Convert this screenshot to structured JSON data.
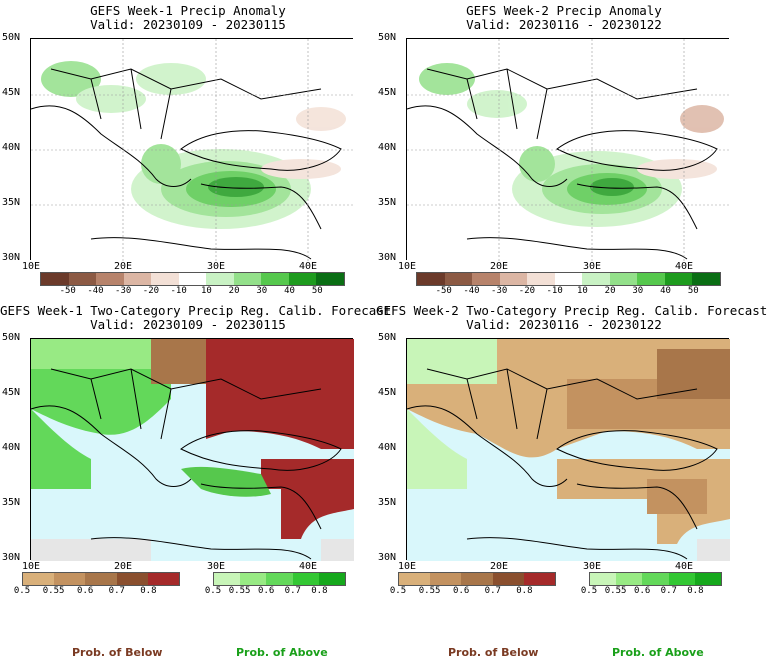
{
  "panels": [
    {
      "title": "GEFS Week-1 Precip Anomaly",
      "valid": "Valid: 20230109 - 20230115"
    },
    {
      "title": "GEFS Week-2 Precip Anomaly",
      "valid": "Valid: 20230116 - 20230122"
    },
    {
      "title": "GEFS Week-1 Two-Category Precip Reg. Calib. Forecast",
      "valid": "Valid: 20230109 - 20230115"
    },
    {
      "title": "GEFS Week-2 Two-Category Precip Reg. Calib. Forecast",
      "valid": "Valid: 20230116 - 20230122"
    }
  ],
  "axes": {
    "lat_labels": [
      "50N",
      "45N",
      "40N",
      "35N",
      "30N"
    ],
    "lon_labels": [
      "10E",
      "20E",
      "30E",
      "40E"
    ]
  },
  "anomaly_colorbar": {
    "ticks": [
      "-50",
      "-40",
      "-30",
      "-20",
      "-10",
      "10",
      "20",
      "30",
      "40",
      "50"
    ],
    "colors": [
      "#6b3a2a",
      "#8c5a44",
      "#b7836b",
      "#dcb6a4",
      "#f3e0d6",
      "#ffffff",
      "#c9f2c4",
      "#93e08a",
      "#56c84d",
      "#1e9b1e",
      "#0a6e14"
    ]
  },
  "prob_colorbars": {
    "below": {
      "ticks": [
        "0.5",
        "0.55",
        "0.6",
        "0.7",
        "0.8"
      ],
      "colors": [
        "#d9b07a",
        "#c39260",
        "#a8764a",
        "#8a4f2e",
        "#a52a2a"
      ]
    },
    "above": {
      "ticks": [
        "0.5",
        "0.55",
        "0.6",
        "0.7",
        "0.8"
      ],
      "colors": [
        "#c8f5b8",
        "#98ea84",
        "#63d85a",
        "#33c733",
        "#16a81c"
      ]
    }
  },
  "labels": {
    "prob_below": "Prob. of Below",
    "prob_above": "Prob. of Above"
  },
  "colors": {
    "prob_below_text": "#7a3a22",
    "prob_above_text": "#1aa01a",
    "sea": "#d9f7fb"
  }
}
